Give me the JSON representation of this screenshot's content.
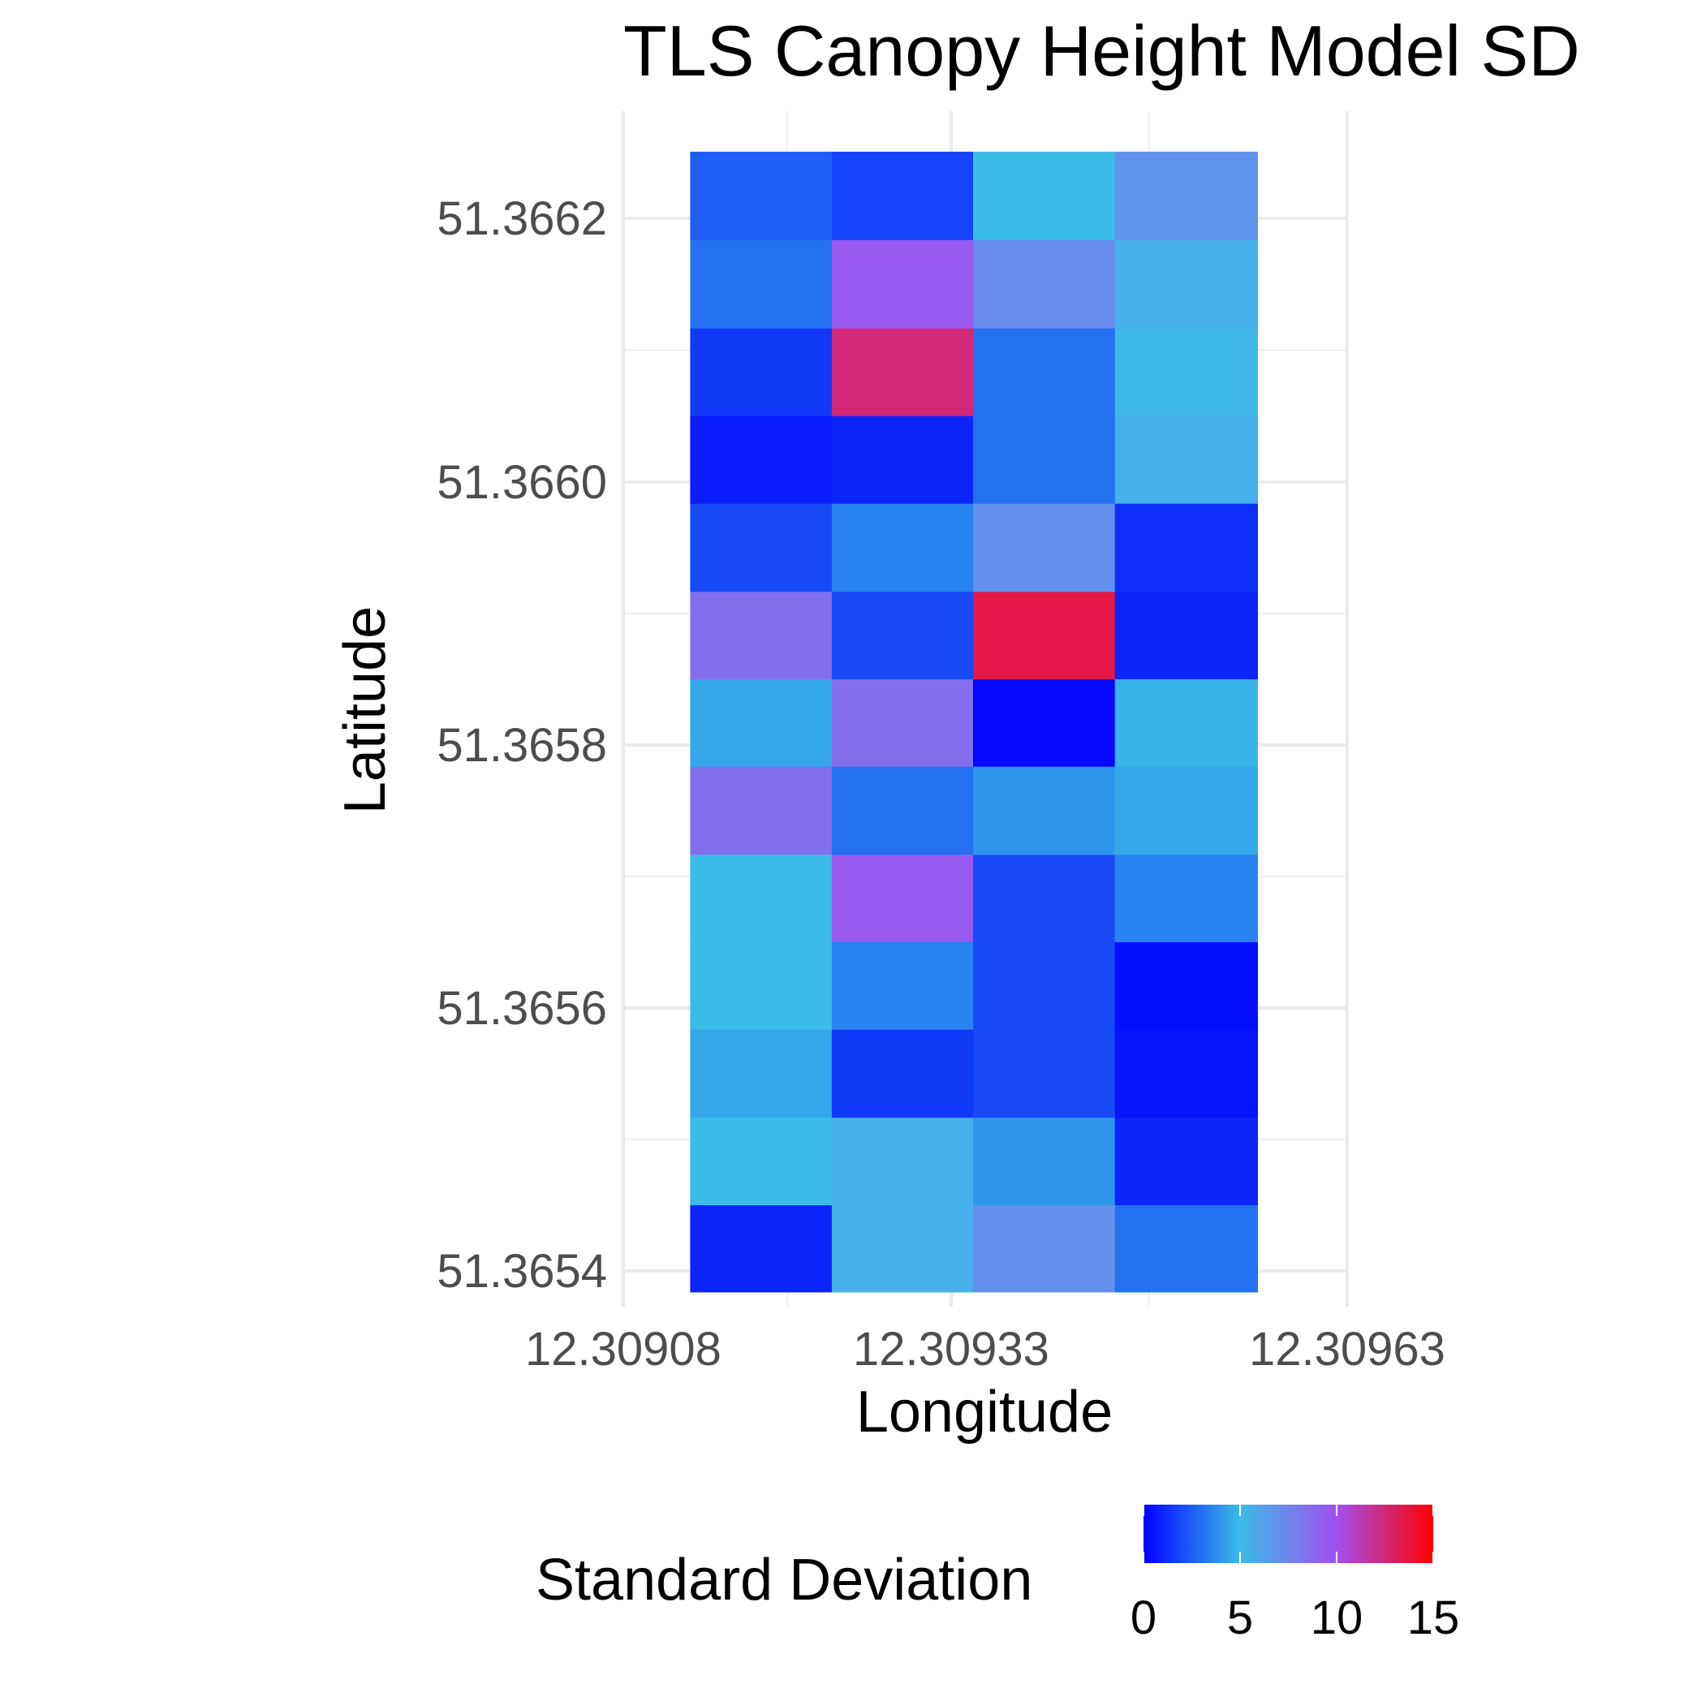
{
  "chart_data": {
    "type": "heatmap",
    "title": "TLS Canopy Height Model SD",
    "xlabel": "Longitude",
    "ylabel": "Latitude",
    "x_ticks": [
      "12.30908",
      "12.30933",
      "12.30963"
    ],
    "x_tick_values": [
      12.30908,
      12.30933,
      12.30963
    ],
    "y_ticks": [
      "51.3654",
      "51.3656",
      "51.3658",
      "51.3660",
      "51.3662"
    ],
    "y_tick_values": [
      51.3654,
      51.3656,
      51.3658,
      51.366,
      51.3662
    ],
    "xlim": [
      12.30908,
      12.30963
    ],
    "ylim": [
      51.36537,
      51.36627
    ],
    "x_centers": [
      12.309185,
      12.309293,
      12.3094,
      12.309508
    ],
    "y_centers": [
      51.366217,
      51.36615,
      51.366083,
      51.366017,
      51.36595,
      51.365883,
      51.365817,
      51.36575,
      51.365683,
      51.365617,
      51.36555,
      51.365483,
      51.365417
    ],
    "values": [
      [
        2.5,
        1.8,
        5.0,
        6.8
      ],
      [
        3.0,
        9.5,
        7.2,
        5.5
      ],
      [
        1.5,
        12.5,
        3.0,
        5.2
      ],
      [
        0.8,
        1.0,
        3.0,
        5.5
      ],
      [
        2.0,
        3.5,
        7.0,
        1.2
      ],
      [
        8.5,
        2.0,
        13.5,
        1.0
      ],
      [
        4.5,
        8.5,
        0.2,
        4.8
      ],
      [
        8.5,
        3.0,
        4.0,
        4.5
      ],
      [
        5.0,
        9.5,
        2.0,
        3.5
      ],
      [
        5.0,
        3.5,
        2.0,
        0.4
      ],
      [
        4.5,
        1.5,
        2.0,
        0.5
      ],
      [
        5.0,
        5.5,
        4.0,
        1.0
      ],
      [
        1.0,
        5.5,
        7.0,
        3.0
      ]
    ],
    "legend": {
      "title": "Standard Deviation",
      "ticks": [
        "0",
        "5",
        "10",
        "15"
      ],
      "tick_values": [
        0,
        5,
        10,
        15
      ],
      "range": [
        0,
        15
      ],
      "placement": "bottom",
      "colors": [
        "#0000ff",
        "#3bbbe8",
        "#a24ff0",
        "#ff0000"
      ],
      "color_stops": [
        0,
        5,
        10,
        15
      ]
    },
    "grid": true
  }
}
